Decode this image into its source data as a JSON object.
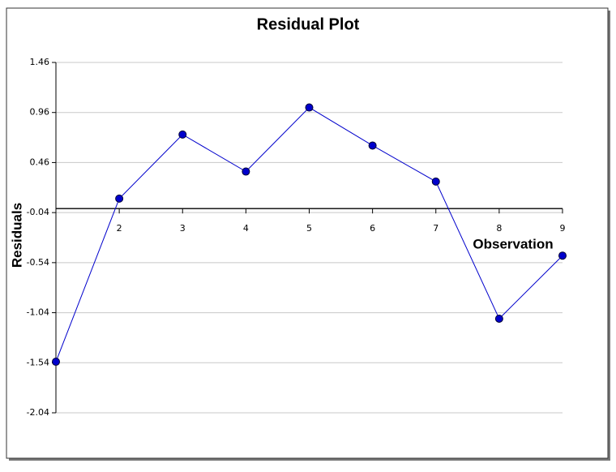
{
  "chart_data": {
    "type": "line",
    "title": "Residual Plot",
    "x_label": "Observation",
    "y_label": "Residuals",
    "x": [
      1,
      2,
      3,
      4,
      5,
      6,
      7,
      8,
      9
    ],
    "series": [
      {
        "color": "#0000cc",
        "values": [
          -1.53,
          0.1,
          0.74,
          0.37,
          1.01,
          0.63,
          0.27,
          -1.1,
          -0.47
        ]
      }
    ],
    "xlim": [
      1,
      9
    ],
    "xticks": [
      2,
      3,
      4,
      5,
      6,
      7,
      8,
      9
    ],
    "ylim": [
      -2.04,
      1.46
    ],
    "yticks": [
      1.46,
      0.96,
      0.46,
      -0.04,
      -0.54,
      -1.04,
      -1.54,
      -2.04
    ],
    "grid": true
  }
}
